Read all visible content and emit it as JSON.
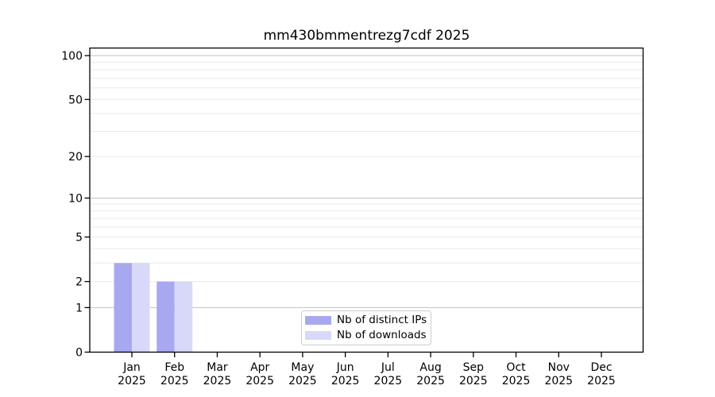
{
  "title": "mm430bmmentrezg7cdf 2025",
  "legend": {
    "items": [
      {
        "label": "Nb of distinct IPs",
        "color": "#a8a8f0"
      },
      {
        "label": "Nb of downloads",
        "color": "#d8d8f8"
      }
    ]
  },
  "colors": {
    "bar_distinct_ips": "#a8a8f0",
    "bar_downloads": "#d8d8f8",
    "grid_minor": "#eaeaea",
    "grid_major": "#c0c0c0",
    "axis": "#000000",
    "tick_label": "#000000",
    "legend_border": "#cccccc"
  },
  "chart_data": {
    "type": "bar",
    "title": "mm430bmmentrezg7cdf 2025",
    "categories": [
      "Jan 2025",
      "Feb 2025",
      "Mar 2025",
      "Apr 2025",
      "May 2025",
      "Jun 2025",
      "Jul 2025",
      "Aug 2025",
      "Sep 2025",
      "Oct 2025",
      "Nov 2025",
      "Dec 2025"
    ],
    "series": [
      {
        "name": "Nb of distinct IPs",
        "color": "#a8a8f0",
        "values": [
          3,
          2,
          0,
          0,
          0,
          0,
          0,
          0,
          0,
          0,
          0,
          0
        ]
      },
      {
        "name": "Nb of downloads",
        "color": "#d8d8f8",
        "values": [
          3,
          2,
          0,
          0,
          0,
          0,
          0,
          0,
          0,
          0,
          0,
          0
        ]
      }
    ],
    "xlabel": "",
    "ylabel": "",
    "yscale": "log1p",
    "ylim": [
      0,
      110
    ],
    "yticks": [
      0,
      1,
      2,
      5,
      10,
      20,
      50,
      100
    ],
    "minor_gridlines": [
      2,
      3,
      4,
      5,
      6,
      7,
      8,
      9,
      20,
      30,
      40,
      50,
      60,
      70,
      80,
      90
    ],
    "major_gridlines": [
      1,
      10,
      100
    ],
    "grid": "horizontal",
    "legend_position": "lower-center-inside"
  }
}
